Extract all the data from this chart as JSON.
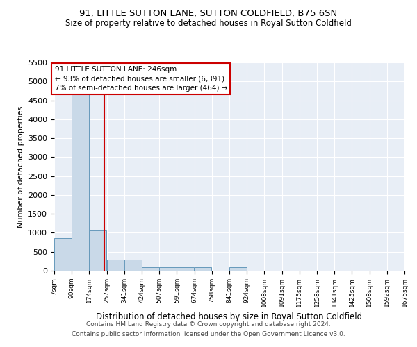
{
  "title1": "91, LITTLE SUTTON LANE, SUTTON COLDFIELD, B75 6SN",
  "title2": "Size of property relative to detached houses in Royal Sutton Coldfield",
  "xlabel": "Distribution of detached houses by size in Royal Sutton Coldfield",
  "ylabel": "Number of detached properties",
  "footnote1": "Contains HM Land Registry data © Crown copyright and database right 2024.",
  "footnote2": "Contains public sector information licensed under the Open Government Licence v3.0.",
  "annotation_title": "91 LITTLE SUTTON LANE: 246sqm",
  "annotation_line1": "← 93% of detached houses are smaller (6,391)",
  "annotation_line2": "7% of semi-detached houses are larger (464) →",
  "property_size": 246,
  "ylim": [
    0,
    5500
  ],
  "yticks": [
    0,
    500,
    1000,
    1500,
    2000,
    2500,
    3000,
    3500,
    4000,
    4500,
    5000,
    5500
  ],
  "bar_color": "#c9d9e8",
  "bar_edge_color": "#6699bb",
  "red_line_color": "#cc0000",
  "annotation_box_color": "#cc0000",
  "bins": [
    7,
    90,
    174,
    257,
    341,
    424,
    507,
    591,
    674,
    758,
    841,
    924,
    1008,
    1091,
    1175,
    1258,
    1341,
    1425,
    1508,
    1592,
    1675
  ],
  "counts": [
    870,
    5100,
    1060,
    290,
    290,
    100,
    100,
    90,
    90,
    0,
    90,
    0,
    0,
    0,
    0,
    0,
    0,
    0,
    0,
    0
  ],
  "bg_color": "#ffffff",
  "plot_bg_color": "#e8eef6"
}
